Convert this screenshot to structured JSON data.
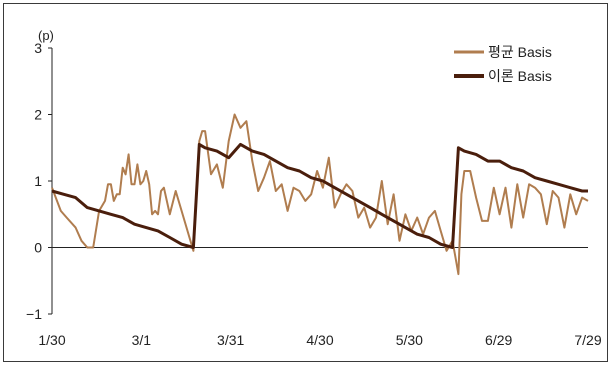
{
  "chart_data": {
    "type": "line",
    "unit_label": "(p)",
    "x_tick_labels": [
      "1/30",
      "3/1",
      "3/31",
      "4/30",
      "5/30",
      "6/29",
      "7/29"
    ],
    "y_ticks": [
      -1,
      0,
      1,
      2,
      3
    ],
    "ylim": [
      -1,
      3
    ],
    "legend_position": "top-right",
    "series": [
      {
        "name": "평균 Basis",
        "color": "#b07d4f",
        "x": [
          0,
          3,
          5,
          8,
          10,
          12,
          14,
          16,
          18,
          19,
          20,
          21,
          22,
          23,
          24,
          25,
          26,
          27,
          28,
          29,
          30,
          31,
          32,
          33,
          34,
          35,
          36,
          37,
          38,
          40,
          42,
          44,
          46,
          48,
          50,
          51,
          52,
          54,
          56,
          58,
          60,
          62,
          64,
          66,
          68,
          70,
          72,
          74,
          76,
          78,
          80,
          82,
          84,
          86,
          88,
          90,
          92,
          94,
          96,
          98,
          100,
          102,
          104,
          106,
          108,
          110,
          112,
          114,
          116,
          118,
          120,
          122,
          124,
          126,
          128,
          130,
          132,
          134,
          136,
          137,
          138,
          139,
          140,
          142,
          144,
          146,
          148,
          150,
          152,
          154,
          156,
          158,
          160,
          162,
          164,
          166,
          168,
          170,
          172,
          174,
          176,
          178,
          180,
          182
        ],
        "values": [
          0.9,
          0.55,
          0.45,
          0.3,
          0.1,
          0.0,
          0.0,
          0.55,
          0.7,
          0.95,
          0.95,
          0.7,
          0.8,
          0.8,
          1.2,
          1.1,
          1.4,
          0.95,
          0.95,
          1.25,
          0.95,
          1.0,
          1.15,
          0.95,
          0.5,
          0.55,
          0.5,
          0.85,
          0.9,
          0.5,
          0.85,
          0.55,
          0.25,
          -0.05,
          1.6,
          1.75,
          1.75,
          1.1,
          1.25,
          0.9,
          1.6,
          2.0,
          1.8,
          1.9,
          1.3,
          0.85,
          1.05,
          1.3,
          0.85,
          0.95,
          0.55,
          0.9,
          0.85,
          0.7,
          0.8,
          1.15,
          0.9,
          1.35,
          0.6,
          0.8,
          0.95,
          0.85,
          0.45,
          0.6,
          0.3,
          0.45,
          1.0,
          0.35,
          0.8,
          0.1,
          0.5,
          0.25,
          0.45,
          0.2,
          0.45,
          0.55,
          0.25,
          -0.05,
          0.1,
          -0.15,
          -0.4,
          0.8,
          1.15,
          1.15,
          0.75,
          0.4,
          0.4,
          0.9,
          0.5,
          0.9,
          0.3,
          0.95,
          0.45,
          0.95,
          0.9,
          0.8,
          0.35,
          0.85,
          0.75,
          0.3,
          0.8,
          0.5,
          0.75,
          0.7
        ],
        "values_source_note": ""
      },
      {
        "name": "이론 Basis",
        "color": "#4a1e0c",
        "x": [
          0,
          4,
          8,
          12,
          16,
          20,
          24,
          28,
          32,
          36,
          40,
          44,
          48,
          50,
          52,
          56,
          60,
          64,
          68,
          72,
          76,
          80,
          84,
          88,
          92,
          96,
          100,
          104,
          108,
          112,
          116,
          120,
          124,
          128,
          132,
          136,
          138,
          140,
          144,
          148,
          152,
          156,
          160,
          164,
          168,
          172,
          176,
          180,
          182
        ],
        "values": [
          0.85,
          0.8,
          0.75,
          0.6,
          0.55,
          0.5,
          0.45,
          0.35,
          0.3,
          0.25,
          0.15,
          0.05,
          0.0,
          1.55,
          1.5,
          1.45,
          1.35,
          1.55,
          1.45,
          1.4,
          1.3,
          1.2,
          1.15,
          1.05,
          1.0,
          0.9,
          0.8,
          0.7,
          0.6,
          0.5,
          0.4,
          0.3,
          0.2,
          0.15,
          0.05,
          0.0,
          1.5,
          1.45,
          1.4,
          1.3,
          1.3,
          1.2,
          1.15,
          1.05,
          1.0,
          0.95,
          0.9,
          0.85,
          0.85
        ]
      }
    ]
  }
}
